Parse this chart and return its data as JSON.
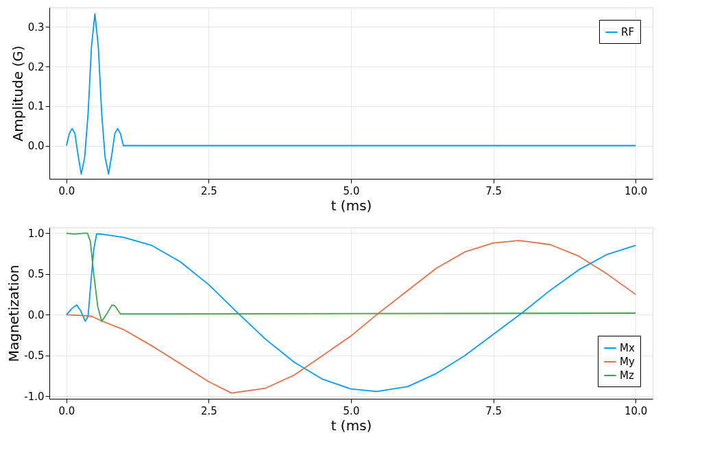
{
  "chart_data": [
    {
      "type": "line",
      "xlabel": "t (ms)",
      "ylabel": "Amplitude (G)",
      "grid": true,
      "legend": "top right",
      "line_style": "solid",
      "marker": "none",
      "xlim": [
        -0.3,
        10.3
      ],
      "ylim": [
        -0.084,
        0.349
      ],
      "xticks": [
        {
          "value": 0,
          "label": "0.0"
        },
        {
          "value": 2.5,
          "label": "2.5"
        },
        {
          "value": 5,
          "label": "5.0"
        },
        {
          "value": 7.5,
          "label": "7.5"
        },
        {
          "value": 10,
          "label": "10.0"
        }
      ],
      "yticks": [
        {
          "value": 0,
          "label": "0.0"
        },
        {
          "value": 0.1,
          "label": "0.1"
        },
        {
          "value": 0.2,
          "label": "0.2"
        },
        {
          "value": 0.3,
          "label": "0.3"
        }
      ],
      "series": [
        {
          "name": "RF",
          "color": "#009af9",
          "x": [
            0,
            0.05,
            0.1,
            0.15,
            0.2,
            0.26,
            0.32,
            0.38,
            0.44,
            0.5,
            0.56,
            0.62,
            0.68,
            0.74,
            0.8,
            0.85,
            0.9,
            0.95,
            1.0,
            10
          ],
          "values": [
            0,
            0.03,
            0.043,
            0.03,
            -0.02,
            -0.072,
            -0.03,
            0.08,
            0.25,
            0.333,
            0.25,
            0.08,
            -0.03,
            -0.072,
            -0.02,
            0.03,
            0.043,
            0.03,
            0,
            0
          ]
        }
      ]
    },
    {
      "type": "line",
      "xlabel": "t (ms)",
      "ylabel": "Magnetization",
      "grid": true,
      "legend": "bottom right",
      "line_style": "solid",
      "marker": "none",
      "xlim": [
        -0.3,
        10.3
      ],
      "ylim": [
        -1.03,
        1.07
      ],
      "xticks": [
        {
          "value": 0,
          "label": "0.0"
        },
        {
          "value": 2.5,
          "label": "2.5"
        },
        {
          "value": 5,
          "label": "5.0"
        },
        {
          "value": 7.5,
          "label": "7.5"
        },
        {
          "value": 10,
          "label": "10.0"
        }
      ],
      "yticks": [
        {
          "value": -1,
          "label": "-1.0"
        },
        {
          "value": -0.5,
          "label": "-0.5"
        },
        {
          "value": 0,
          "label": "0.0"
        },
        {
          "value": 0.5,
          "label": "0.5"
        },
        {
          "value": 1,
          "label": "1.0"
        }
      ],
      "series": [
        {
          "name": "Mx",
          "color": "#009af9",
          "x": [
            0,
            0.1,
            0.18,
            0.25,
            0.33,
            0.38,
            0.43,
            0.48,
            0.53,
            0.6,
            0.8,
            1.0,
            1.5,
            2.0,
            2.5,
            3.0,
            3.5,
            4.0,
            4.5,
            5.0,
            5.45,
            6.0,
            6.5,
            7.0,
            7.5,
            8.0,
            8.5,
            9.0,
            9.5,
            10
          ],
          "values": [
            0,
            0.08,
            0.12,
            0.05,
            -0.08,
            -0.02,
            0.4,
            0.8,
            0.99,
            0.99,
            0.97,
            0.95,
            0.85,
            0.65,
            0.37,
            0.03,
            -0.3,
            -0.58,
            -0.79,
            -0.91,
            -0.94,
            -0.88,
            -0.72,
            -0.5,
            -0.24,
            0.02,
            0.3,
            0.55,
            0.74,
            0.85
          ]
        },
        {
          "name": "My",
          "color": "#e26f46",
          "x": [
            0,
            0.3,
            0.45,
            0.6,
            1.0,
            1.5,
            2.0,
            2.5,
            2.9,
            3.5,
            4.0,
            4.5,
            5.0,
            5.45,
            6.0,
            6.5,
            7.0,
            7.5,
            7.95,
            8.5,
            9.0,
            9.5,
            10
          ],
          "values": [
            0,
            -0.01,
            -0.02,
            -0.07,
            -0.18,
            -0.38,
            -0.6,
            -0.82,
            -0.96,
            -0.9,
            -0.74,
            -0.5,
            -0.26,
            0.0,
            0.3,
            0.57,
            0.77,
            0.88,
            0.91,
            0.86,
            0.72,
            0.5,
            0.25
          ]
        },
        {
          "name": "Mz",
          "color": "#3da44d",
          "x": [
            0,
            0.15,
            0.3,
            0.37,
            0.42,
            0.48,
            0.55,
            0.62,
            0.7,
            0.8,
            0.85,
            0.95,
            1.0,
            10
          ],
          "values": [
            1.0,
            0.99,
            1.0,
            1.0,
            0.9,
            0.5,
            0.1,
            -0.08,
            0.0,
            0.12,
            0.11,
            0.01,
            0.01,
            0.02
          ]
        }
      ]
    }
  ]
}
